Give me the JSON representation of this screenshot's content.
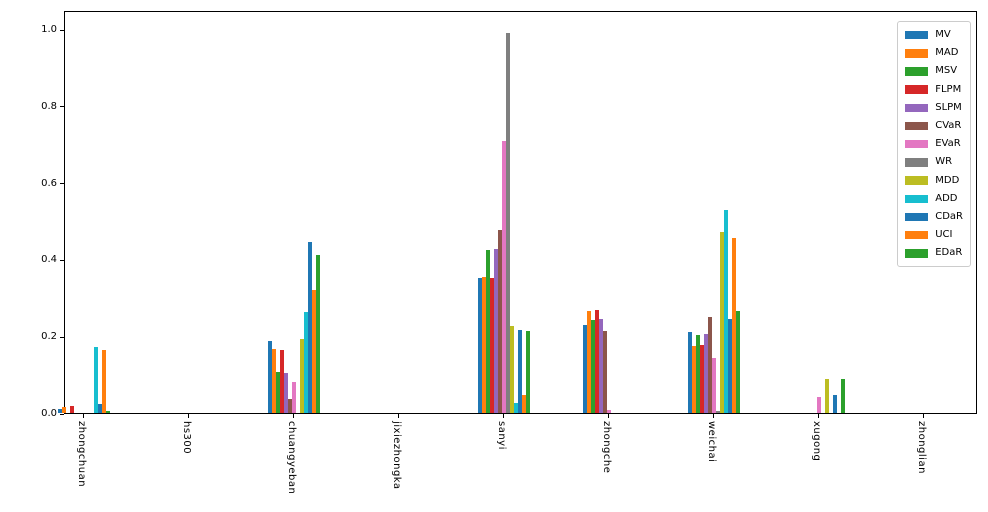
{
  "chart_data": {
    "type": "bar",
    "title": "",
    "xlabel": "",
    "ylabel": "",
    "grid": false,
    "legend_position": "upper right",
    "ylim": [
      0,
      1.05
    ],
    "yticks": [
      "0.0",
      "0.2",
      "0.4",
      "0.6",
      "0.8",
      "1.0"
    ],
    "categories": [
      "zhongchuan",
      "hs300",
      "chuangyeban",
      "jixiezhongka",
      "sanyi",
      "zhongche",
      "weichai",
      "xugong",
      "zhonglian"
    ],
    "series": [
      {
        "name": "MV",
        "color": "#1f77b4",
        "values": [
          0.01,
          0,
          0.187,
          0,
          0.352,
          0.229,
          0.211,
          0,
          0
        ]
      },
      {
        "name": "MAD",
        "color": "#ff7f0e",
        "values": [
          0.016,
          0,
          0.168,
          0,
          0.354,
          0.265,
          0.175,
          0,
          0
        ]
      },
      {
        "name": "MSV",
        "color": "#2ca02c",
        "values": [
          0,
          0,
          0.106,
          0,
          0.424,
          0.243,
          0.203,
          0,
          0
        ]
      },
      {
        "name": "FLPM",
        "color": "#d62728",
        "values": [
          0.018,
          0,
          0.164,
          0,
          0.352,
          0.268,
          0.178,
          0,
          0
        ]
      },
      {
        "name": "SLPM",
        "color": "#9467bd",
        "values": [
          0,
          0,
          0.103,
          0,
          0.427,
          0.246,
          0.205,
          0,
          0
        ]
      },
      {
        "name": "CVaR",
        "color": "#8c564b",
        "values": [
          0,
          0,
          0.036,
          0,
          0.476,
          0.214,
          0.25,
          0,
          0
        ]
      },
      {
        "name": "EVaR",
        "color": "#e377c2",
        "values": [
          0,
          0,
          0.081,
          0,
          0.71,
          0.008,
          0.143,
          0.042,
          0
        ]
      },
      {
        "name": "WR",
        "color": "#7f7f7f",
        "values": [
          0,
          0,
          0,
          0,
          0.99,
          0,
          0.006,
          0,
          0
        ]
      },
      {
        "name": "MDD",
        "color": "#bcbd22",
        "values": [
          0,
          0,
          0.192,
          0,
          0.226,
          0,
          0.471,
          0.088,
          0
        ]
      },
      {
        "name": "ADD",
        "color": "#17becf",
        "values": [
          0.172,
          0,
          0.263,
          0,
          0.026,
          0,
          0.528,
          0,
          0
        ]
      },
      {
        "name": "CDaR",
        "color": "#1f77b4",
        "values": [
          0.023,
          0,
          0.445,
          0,
          0.216,
          0,
          0.246,
          0.047,
          0
        ]
      },
      {
        "name": "UCI",
        "color": "#ff7f0e",
        "values": [
          0.163,
          0,
          0.32,
          0,
          0.047,
          0,
          0.455,
          0,
          0
        ]
      },
      {
        "name": "EDaR",
        "color": "#2ca02c",
        "values": [
          0.005,
          0,
          0.412,
          0,
          0.214,
          0,
          0.265,
          0.088,
          0
        ]
      }
    ]
  }
}
